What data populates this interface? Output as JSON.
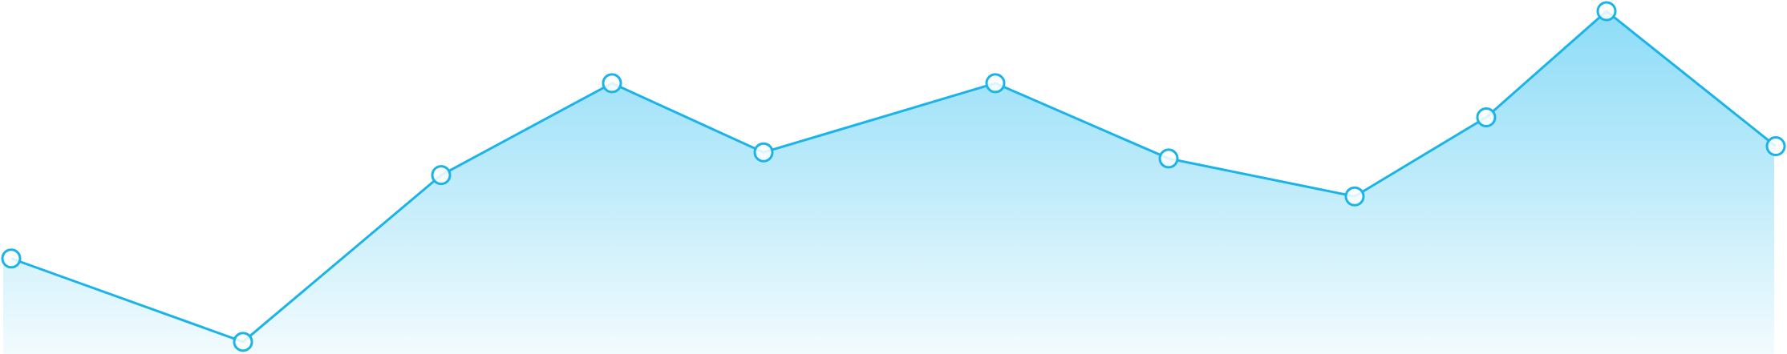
{
  "chart_data": {
    "type": "area",
    "x": [
      1,
      2,
      3,
      4,
      5,
      6,
      7,
      8,
      9,
      10,
      11
    ],
    "values": [
      17.8,
      0.2,
      35.4,
      54.8,
      40.2,
      54.8,
      38.9,
      30.9,
      47.6,
      70.0,
      41.5
    ],
    "ylim": [
      0,
      70
    ],
    "grid": false,
    "legend": "none",
    "line_color": "#1ab3ea",
    "fill_top_color": "#8ddcf7",
    "fill_bottom_color": "#f2fbfe",
    "marker_fill": "#ffffff"
  }
}
